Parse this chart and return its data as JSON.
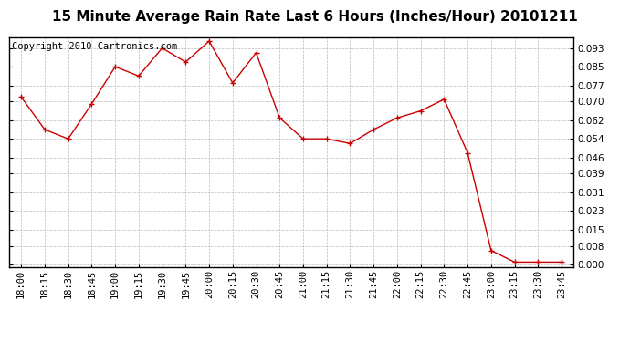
{
  "title": "15 Minute Average Rain Rate Last 6 Hours (Inches/Hour) 20101211",
  "copyright": "Copyright 2010 Cartronics.com",
  "x_labels": [
    "18:00",
    "18:15",
    "18:30",
    "18:45",
    "19:00",
    "19:15",
    "19:30",
    "19:45",
    "20:00",
    "20:15",
    "20:30",
    "20:45",
    "21:00",
    "21:15",
    "21:30",
    "21:45",
    "22:00",
    "22:15",
    "22:30",
    "22:45",
    "23:00",
    "23:15",
    "23:30",
    "23:45"
  ],
  "y_values": [
    0.072,
    0.058,
    0.054,
    0.069,
    0.085,
    0.081,
    0.093,
    0.087,
    0.096,
    0.078,
    0.091,
    0.063,
    0.054,
    0.054,
    0.052,
    0.058,
    0.063,
    0.066,
    0.071,
    0.048,
    0.006,
    0.001,
    0.001,
    0.001
  ],
  "y_ticks": [
    0.0,
    0.008,
    0.015,
    0.023,
    0.031,
    0.039,
    0.046,
    0.054,
    0.062,
    0.07,
    0.077,
    0.085,
    0.093
  ],
  "y_max": 0.0975,
  "y_min": -0.001,
  "line_color": "#cc0000",
  "marker": "+",
  "marker_size": 5,
  "background_color": "#ffffff",
  "grid_color": "#bbbbbb",
  "title_fontsize": 11,
  "tick_fontsize": 7.5,
  "copyright_fontsize": 7.5
}
